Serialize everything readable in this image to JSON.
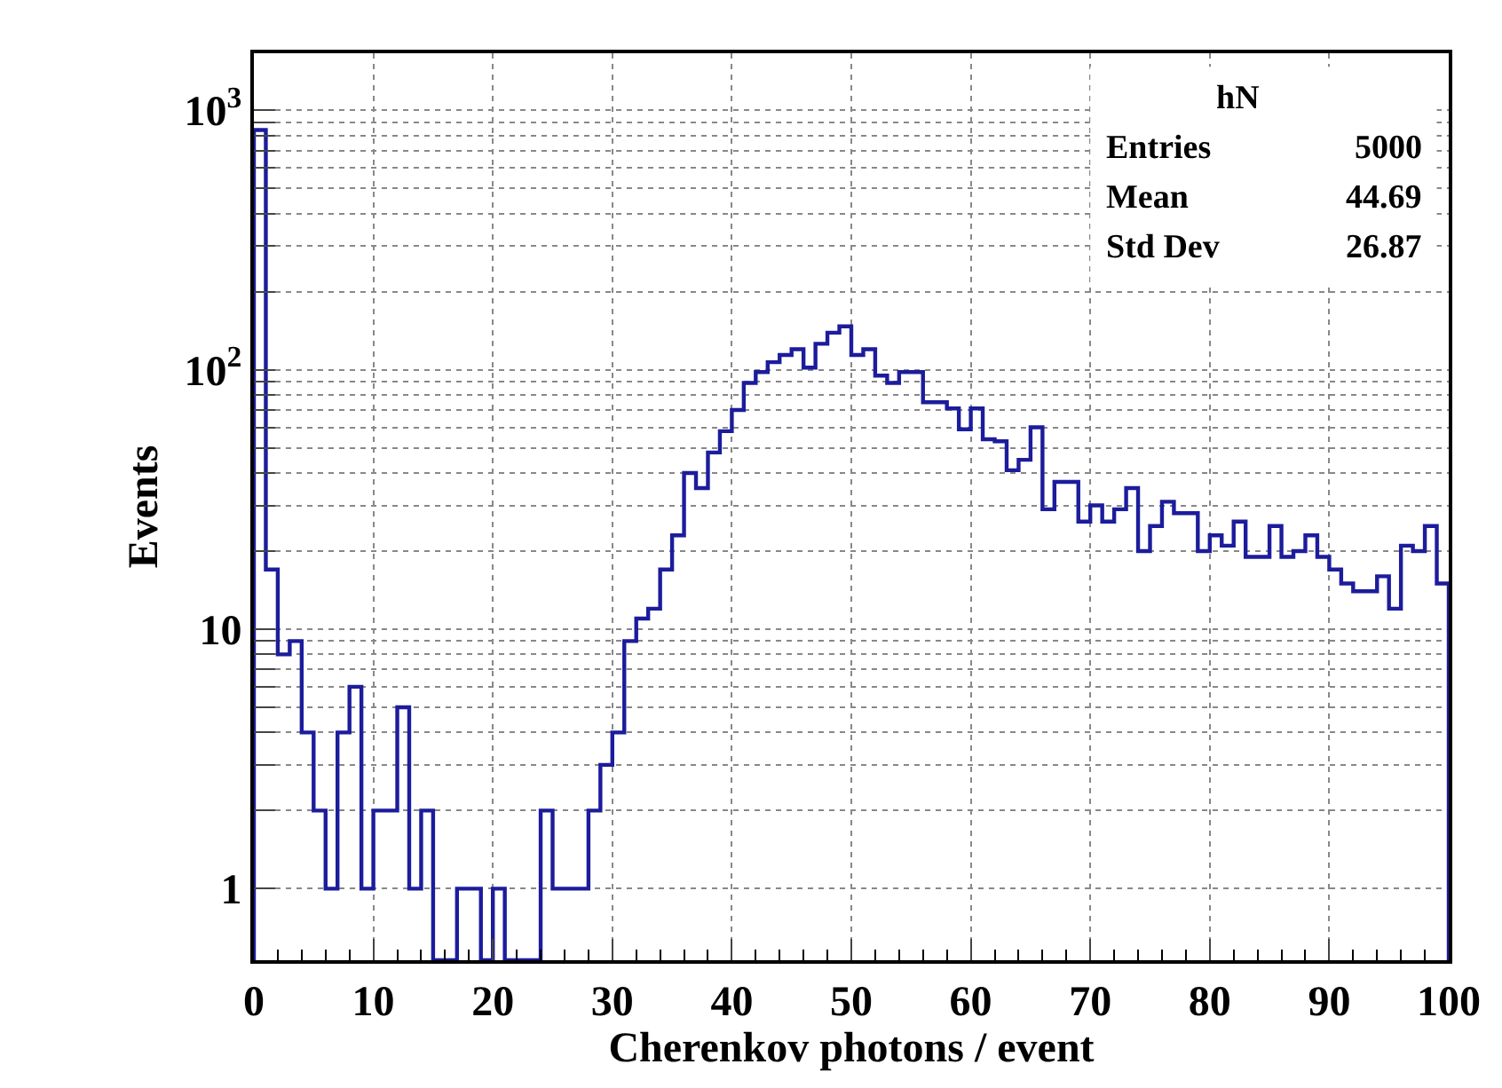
{
  "chart_data": {
    "type": "histogram",
    "xlabel": "Cherenkov photons / event",
    "ylabel": "Events",
    "bins": [
      0,
      1,
      2,
      3,
      4,
      5,
      6,
      7,
      8,
      9,
      10,
      11,
      12,
      13,
      14,
      15,
      16,
      17,
      18,
      19,
      20,
      21,
      22,
      23,
      24,
      25,
      26,
      27,
      28,
      29,
      30,
      31,
      32,
      33,
      34,
      35,
      36,
      37,
      38,
      39,
      40,
      41,
      42,
      43,
      44,
      45,
      46,
      47,
      48,
      49,
      50,
      51,
      52,
      53,
      54,
      55,
      56,
      57,
      58,
      59,
      60,
      61,
      62,
      63,
      64,
      65,
      66,
      67,
      68,
      69,
      70,
      71,
      72,
      73,
      74,
      75,
      76,
      77,
      78,
      79,
      80,
      81,
      82,
      83,
      84,
      85,
      86,
      87,
      88,
      89,
      90,
      91,
      92,
      93,
      94,
      95,
      96,
      97,
      98,
      99,
      100
    ],
    "values": [
      840,
      17,
      8,
      9,
      4,
      2,
      1,
      4,
      6,
      1,
      2,
      2,
      5,
      1,
      2,
      null,
      null,
      1,
      1,
      null,
      1,
      null,
      null,
      null,
      2,
      1,
      1,
      1,
      2,
      3,
      4,
      9,
      11,
      12,
      17,
      23,
      40,
      35,
      48,
      58,
      70,
      89,
      98,
      107,
      114,
      120,
      102,
      126,
      139,
      147,
      114,
      120,
      95,
      89,
      98,
      98,
      75,
      75,
      71,
      59,
      71,
      54,
      53,
      41,
      45,
      60,
      29,
      37,
      37,
      26,
      30,
      26,
      29,
      35,
      20,
      25,
      31,
      28,
      28,
      20,
      23,
      21,
      26,
      19,
      19,
      25,
      19,
      20,
      23,
      19,
      17,
      15,
      14,
      14,
      16,
      12,
      21,
      20,
      25,
      15
    ],
    "color": "#1c1c9c",
    "log": "y",
    "xlim": [
      0,
      100
    ],
    "xticks": [
      0,
      10,
      20,
      30,
      40,
      50,
      60,
      70,
      80,
      90,
      100
    ],
    "ylim": [
      0.53,
      1660
    ],
    "yticks": [
      {
        "value": 1,
        "label": "1"
      },
      {
        "value": 2,
        "label": null
      },
      {
        "value": 3,
        "label": null
      },
      {
        "value": 4,
        "label": null
      },
      {
        "value": 5,
        "label": null
      },
      {
        "value": 6,
        "label": null
      },
      {
        "value": 7,
        "label": null
      },
      {
        "value": 8,
        "label": null
      },
      {
        "value": 9,
        "label": null
      },
      {
        "value": 10,
        "label": "10"
      },
      {
        "value": 20,
        "label": null
      },
      {
        "value": 30,
        "label": null
      },
      {
        "value": 40,
        "label": null
      },
      {
        "value": 50,
        "label": null
      },
      {
        "value": 60,
        "label": null
      },
      {
        "value": 70,
        "label": null
      },
      {
        "value": 80,
        "label": null
      },
      {
        "value": 90,
        "label": null
      },
      {
        "value": 100,
        "label": "10$^{2}$"
      },
      {
        "value": 200,
        "label": null
      },
      {
        "value": 300,
        "label": null
      },
      {
        "value": 400,
        "label": null
      },
      {
        "value": 500,
        "label": null
      },
      {
        "value": 600,
        "label": null
      },
      {
        "value": 700,
        "label": null
      },
      {
        "value": 800,
        "label": null
      },
      {
        "value": 900,
        "label": null
      },
      {
        "value": 1000,
        "label": "10$^{3}$"
      }
    ],
    "grid": true,
    "annotations": [
      "hN",
      "Entries",
      "5000",
      "Mean",
      "44.69",
      "Std Dev",
      "26.87"
    ]
  }
}
